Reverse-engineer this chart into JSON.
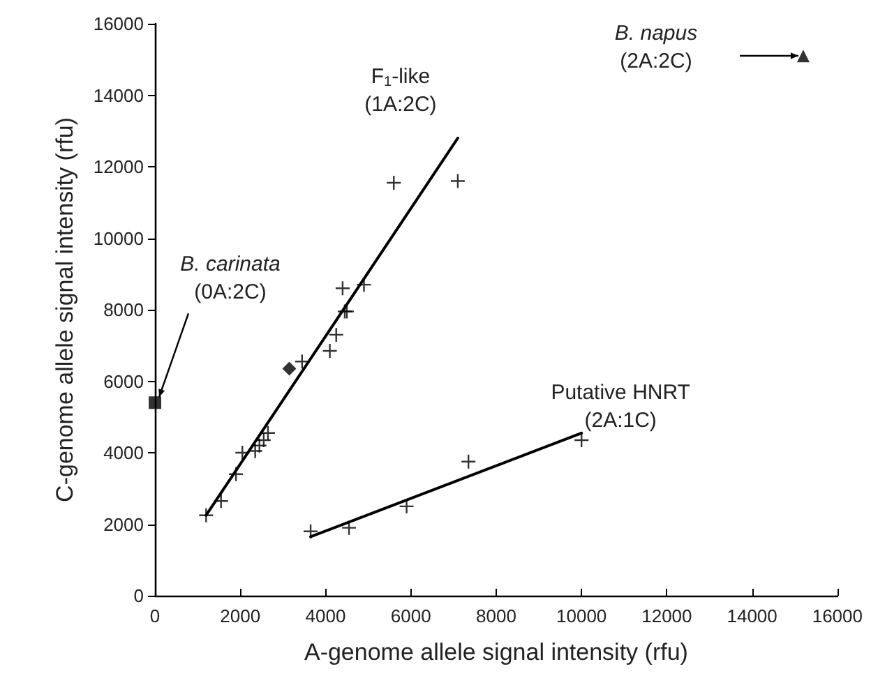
{
  "chart_data": {
    "type": "scatter",
    "xlabel": "A-genome allele signal intensity (rfu)",
    "ylabel": "C-genome allele signal intensity (rfu)",
    "xlim": [
      0,
      16000
    ],
    "xticks": [
      0,
      2000,
      4000,
      6000,
      8000,
      10000,
      12000,
      14000,
      16000
    ],
    "ylim": [
      0,
      16000
    ],
    "yticks": [
      0,
      2000,
      4000,
      6000,
      8000,
      10000,
      12000,
      14000,
      16000
    ],
    "grid": false,
    "series": [
      {
        "type": "scatter",
        "marker": "cross",
        "color": "#000000",
        "x": [
          1200,
          1550,
          1900,
          2050,
          2350,
          2450,
          2550,
          2650,
          3450,
          4100,
          4250,
          4400,
          4450,
          4500,
          4900,
          5600,
          7100
        ],
        "values": [
          2250,
          2650,
          3400,
          4000,
          4050,
          4200,
          4350,
          4550,
          6550,
          6850,
          7300,
          8600,
          7950,
          7950,
          8700,
          11550,
          11600
        ]
      },
      {
        "type": "scatter",
        "marker": "cross",
        "color": "#000000",
        "x": [
          3650,
          4550,
          5900,
          7350,
          10000
        ],
        "values": [
          1800,
          1900,
          2500,
          3750,
          4350
        ]
      },
      {
        "type": "scatter",
        "marker": "diamond",
        "color": "#000000",
        "x": [
          3150
        ],
        "values": [
          6350
        ]
      },
      {
        "type": "scatter",
        "marker": "square",
        "color": "#000000",
        "x": [
          0
        ],
        "values": [
          5400
        ]
      },
      {
        "type": "scatter",
        "marker": "triangle",
        "color": "#000000",
        "x": [
          15200
        ],
        "values": [
          15100
        ]
      },
      {
        "type": "line",
        "marker": "none",
        "line_style": "solid",
        "color": "#000000",
        "x": [
          1200,
          7100
        ],
        "values": [
          2250,
          12800
        ]
      },
      {
        "type": "line",
        "marker": "none",
        "line_style": "solid",
        "color": "#000000",
        "x": [
          3650,
          10000
        ],
        "values": [
          1650,
          4550
        ]
      }
    ],
    "annotations": [
      {
        "text": "B. carinata\n(0A:2C)",
        "x": 0,
        "y": 5400
      },
      "B. napus\n(2A:2C)",
      {
        "text": "F$_{1}$-like\n(1A:2C)",
        "x": 7100,
        "y": 12800
      },
      {
        "text": "Putative HNRT\n(2A:1C)",
        "x": 10000,
        "y": 4350
      }
    ]
  }
}
